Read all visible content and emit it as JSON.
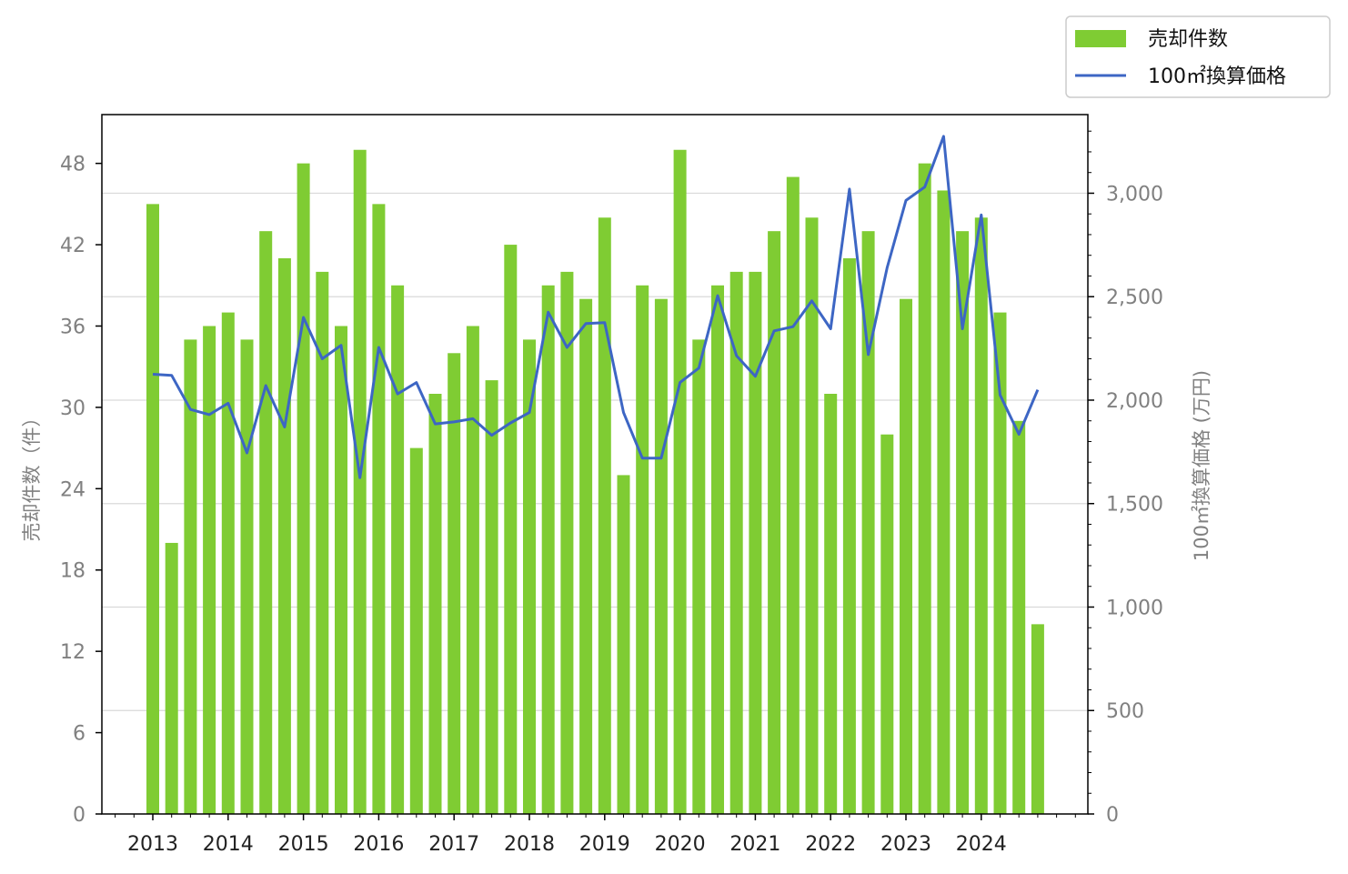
{
  "chart_data": {
    "type": "bar",
    "secondary_type": "line",
    "x_tick_labels": [
      "2013",
      "2014",
      "2015",
      "2016",
      "2017",
      "2018",
      "2019",
      "2020",
      "2021",
      "2022",
      "2023",
      "2024"
    ],
    "series": [
      {
        "name": "売却件数",
        "axis": "left",
        "type": "bar",
        "color": "#7fcc33",
        "values": [
          45,
          20,
          35,
          36,
          37,
          35,
          43,
          41,
          48,
          40,
          36,
          49,
          45,
          39,
          27,
          31,
          34,
          36,
          32,
          42,
          35,
          39,
          40,
          38,
          44,
          25,
          39,
          38,
          49,
          35,
          39,
          40,
          40,
          43,
          47,
          44,
          31,
          41,
          43,
          28,
          38,
          48,
          46,
          43,
          44,
          37,
          29,
          14
        ]
      },
      {
        "name": "100㎡換算価格",
        "axis": "right",
        "type": "line",
        "color": "#3d66c4",
        "values": [
          2125,
          2120,
          1955,
          1930,
          1985,
          1745,
          2070,
          1870,
          2400,
          2200,
          2265,
          1625,
          2255,
          2030,
          2085,
          1885,
          1895,
          1910,
          1830,
          1890,
          1940,
          2425,
          2255,
          2370,
          2375,
          1940,
          1720,
          1720,
          2085,
          2155,
          2505,
          2215,
          2115,
          2335,
          2355,
          2480,
          2345,
          3020,
          2220,
          2640,
          2965,
          3030,
          3275,
          2345,
          2895,
          2025,
          1835,
          2050
        ]
      }
    ],
    "left_axis": {
      "label": "売却件数（件）",
      "range": [
        0,
        51.6
      ],
      "ticks": [
        "0",
        "6",
        "12",
        "18",
        "24",
        "30",
        "36",
        "42",
        "48"
      ]
    },
    "right_axis": {
      "label": "100㎡換算価格 (万円)",
      "range": [
        0,
        3380
      ],
      "ticks": [
        "0",
        "500",
        "1,000",
        "1,500",
        "2,000",
        "2,500",
        "3,000"
      ]
    },
    "grid": "horizontal, right axis",
    "legend_position": "top-right, outside"
  }
}
